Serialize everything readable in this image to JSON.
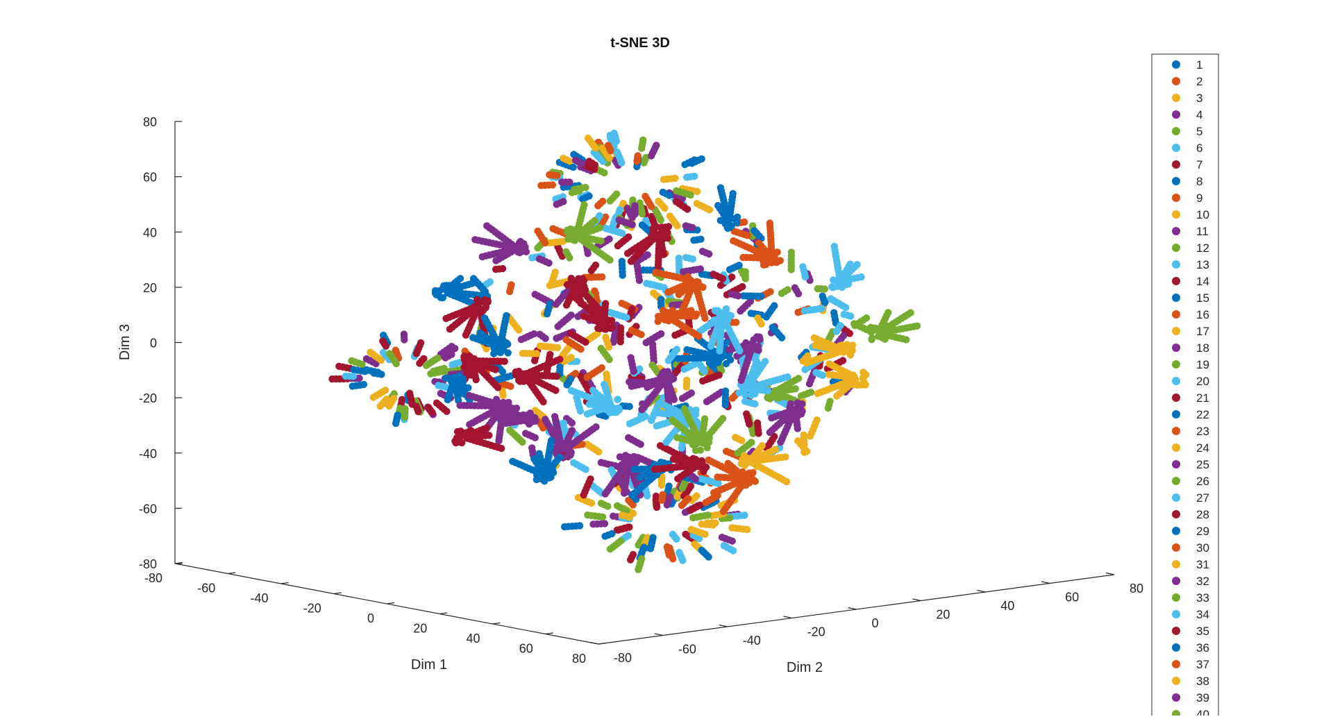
{
  "chart_data": {
    "type": "scatter",
    "title": "t-SNE 3D",
    "xlabel": "Dim 1",
    "ylabel": "Dim 2",
    "zlabel": "Dim 3",
    "xlim": [
      -80,
      80
    ],
    "ylim": [
      -80,
      80
    ],
    "zlim": [
      -80,
      80
    ],
    "x_ticks": [
      "-80",
      "-60",
      "-40",
      "-20",
      "0",
      "20",
      "40",
      "60",
      "80"
    ],
    "y_ticks": [
      "-80",
      "-60",
      "-40",
      "-20",
      "0",
      "20",
      "40",
      "60",
      "80"
    ],
    "z_ticks": [
      "-80",
      "-60",
      "-40",
      "-20",
      "0",
      "20",
      "40",
      "60",
      "80"
    ],
    "grid": false,
    "legend_position": "right",
    "palette": [
      "#0072BD",
      "#D95319",
      "#EDB120",
      "#7E2F8E",
      "#77AC30",
      "#4DBEEE",
      "#A2142F"
    ],
    "series": [
      {
        "name": "1"
      },
      {
        "name": "2"
      },
      {
        "name": "3"
      },
      {
        "name": "4"
      },
      {
        "name": "5"
      },
      {
        "name": "6"
      },
      {
        "name": "7"
      },
      {
        "name": "8"
      },
      {
        "name": "9"
      },
      {
        "name": "10"
      },
      {
        "name": "11"
      },
      {
        "name": "12"
      },
      {
        "name": "13"
      },
      {
        "name": "14"
      },
      {
        "name": "15"
      },
      {
        "name": "16"
      },
      {
        "name": "17"
      },
      {
        "name": "18"
      },
      {
        "name": "19"
      },
      {
        "name": "20"
      },
      {
        "name": "21"
      },
      {
        "name": "22"
      },
      {
        "name": "23"
      },
      {
        "name": "24"
      },
      {
        "name": "25"
      },
      {
        "name": "26"
      },
      {
        "name": "27"
      },
      {
        "name": "28"
      },
      {
        "name": "29"
      },
      {
        "name": "30"
      },
      {
        "name": "31"
      },
      {
        "name": "32"
      },
      {
        "name": "33"
      },
      {
        "name": "34"
      },
      {
        "name": "35"
      },
      {
        "name": "36"
      },
      {
        "name": "37"
      },
      {
        "name": "38"
      },
      {
        "name": "39"
      },
      {
        "name": "40"
      }
    ]
  }
}
